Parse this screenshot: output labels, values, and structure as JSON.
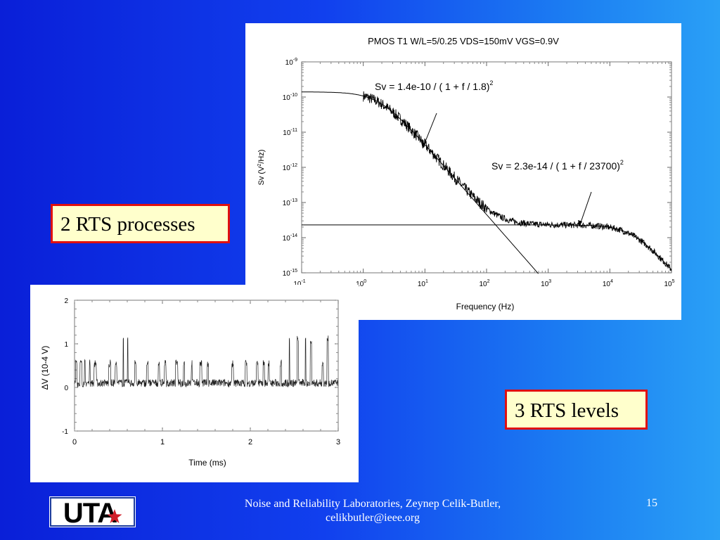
{
  "callouts": {
    "rts_processes": "2 RTS processes",
    "rts_levels": "3 RTS levels"
  },
  "footer": {
    "logo_text": "UTA",
    "credit_line1": "Noise and Reliability Laboratories, Zeynep Celik-Butler,",
    "credit_line2": "celikbutler@ieee.org",
    "page_number": "15"
  },
  "colors": {
    "background_left": "#0a1fd8",
    "background_right": "#2aa0f6",
    "callout_fill": "#ffffcc",
    "callout_border": "#e01010",
    "logo_blue": "#1a3a9c",
    "logo_red": "#d0202a"
  },
  "chart_data": [
    {
      "type": "line",
      "title": "PMOS T1 W/L=5/0.25 VDS=150mV VGS=0.9V",
      "xlabel": "Frequency (Hz)",
      "ylabel_base": "Sv (V",
      "ylabel_sup": "2",
      "ylabel_tail": "/Hz)",
      "xscale": "log",
      "yscale": "log",
      "xlim_exp": [
        -1,
        5
      ],
      "ylim_exp": [
        -15,
        -9
      ],
      "x_tick_exponents": [
        "-1",
        "0",
        "1",
        "2",
        "3",
        "4",
        "5"
      ],
      "y_tick_exponents": [
        "-15",
        "-14",
        "-13",
        "-12",
        "-11",
        "-10",
        "-9"
      ],
      "tick_base": "10",
      "fits": [
        {
          "A": 1.4e-10,
          "fc": 1.8,
          "label": "Sv = 1.4e-10 / ( 1 + f / 1.8)",
          "label_sup": "2"
        },
        {
          "A": 2.3e-14,
          "fc": 23700,
          "label": "Sv = 2.3e-14 / ( 1 + f / 23700)",
          "label_sup": "2"
        }
      ],
      "measured": {
        "f_start": 1.0,
        "f_end": 100000
      }
    },
    {
      "type": "line",
      "xlabel": "Time (ms)",
      "ylabel": "ΔV (10-4 V)",
      "xlim": [
        0,
        3
      ],
      "ylim": [
        -1,
        2
      ],
      "x_ticks": [
        "0",
        "1",
        "2",
        "3"
      ],
      "y_ticks": [
        "-1",
        "0",
        "1",
        "2"
      ],
      "rts_levels": [
        0.1,
        0.55,
        1.1
      ]
    }
  ]
}
